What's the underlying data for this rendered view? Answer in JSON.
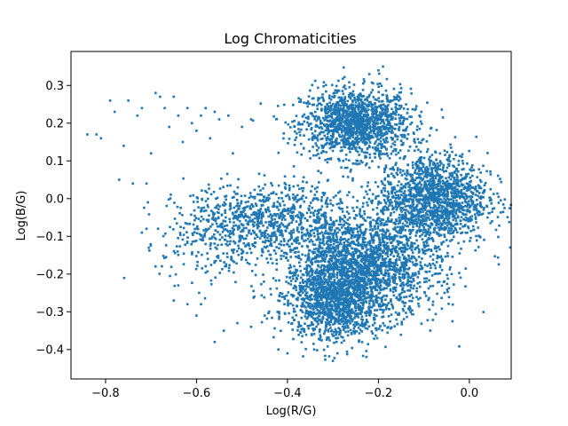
{
  "chart_data": {
    "type": "scatter",
    "title": "Log Chromaticities",
    "xlabel": "Log(R/G)",
    "ylabel": "Log(B/G)",
    "xlim": [
      -0.876,
      0.092
    ],
    "ylim": [
      -0.478,
      0.39
    ],
    "xticks": [
      -0.8,
      -0.6,
      -0.4,
      -0.2,
      0.0
    ],
    "xtick_labels": [
      "−0.8",
      "−0.6",
      "−0.4",
      "−0.2",
      "0.0"
    ],
    "yticks": [
      -0.4,
      -0.3,
      -0.2,
      -0.1,
      0.0,
      0.1,
      0.2,
      0.3
    ],
    "ytick_labels": [
      "−0.4",
      "−0.3",
      "−0.2",
      "−0.1",
      "0.0",
      "0.1",
      "0.2",
      "0.3"
    ],
    "grid": false,
    "marker_color": "#1f77b4",
    "clusters": [
      {
        "cx": -0.25,
        "cy": 0.2,
        "sx": 0.06,
        "sy": 0.045,
        "n": 1400
      },
      {
        "cx": -0.08,
        "cy": 0.0,
        "sx": 0.06,
        "sy": 0.06,
        "n": 1500
      },
      {
        "cx": -0.24,
        "cy": -0.18,
        "sx": 0.085,
        "sy": 0.07,
        "n": 2200
      },
      {
        "cx": -0.3,
        "cy": -0.28,
        "sx": 0.05,
        "sy": 0.05,
        "n": 900
      },
      {
        "cx": -0.44,
        "cy": -0.05,
        "sx": 0.09,
        "sy": 0.045,
        "n": 700
      },
      {
        "cx": -0.56,
        "cy": -0.12,
        "sx": 0.06,
        "sy": 0.06,
        "n": 220
      }
    ],
    "outliers": [
      [
        -0.84,
        0.17
      ],
      [
        -0.82,
        0.17
      ],
      [
        -0.81,
        0.16
      ],
      [
        -0.79,
        0.26
      ],
      [
        -0.78,
        0.23
      ],
      [
        -0.77,
        0.05
      ],
      [
        -0.76,
        0.14
      ],
      [
        -0.75,
        0.26
      ],
      [
        -0.74,
        0.04
      ],
      [
        -0.73,
        0.22
      ],
      [
        -0.72,
        0.24
      ],
      [
        -0.71,
        0.04
      ],
      [
        -0.7,
        0.12
      ],
      [
        -0.69,
        0.28
      ],
      [
        -0.68,
        0.27
      ],
      [
        -0.67,
        0.24
      ],
      [
        -0.66,
        0.19
      ],
      [
        -0.65,
        0.27
      ],
      [
        -0.64,
        0.22
      ],
      [
        -0.63,
        0.15
      ],
      [
        -0.62,
        0.24
      ],
      [
        -0.61,
        0.2
      ],
      [
        -0.6,
        0.18
      ],
      [
        -0.59,
        0.22
      ],
      [
        -0.58,
        0.24
      ],
      [
        -0.57,
        0.16
      ],
      [
        -0.56,
        0.23
      ],
      [
        -0.55,
        0.21
      ],
      [
        -0.53,
        0.22
      ],
      [
        -0.52,
        0.12
      ],
      [
        -0.5,
        0.19
      ],
      [
        -0.48,
        0.21
      ],
      [
        -0.72,
        -0.09
      ],
      [
        -0.71,
        -0.08
      ],
      [
        -0.69,
        -0.18
      ],
      [
        -0.65,
        -0.27
      ],
      [
        -0.64,
        -0.23
      ],
      [
        -0.62,
        -0.28
      ],
      [
        -0.6,
        -0.31
      ],
      [
        -0.59,
        -0.28
      ],
      [
        -0.56,
        -0.38
      ],
      [
        -0.54,
        -0.35
      ],
      [
        -0.51,
        -0.33
      ],
      [
        -0.48,
        -0.34
      ],
      [
        -0.45,
        -0.31
      ],
      [
        -0.42,
        -0.4
      ],
      [
        -0.4,
        -0.41
      ],
      [
        -0.3,
        -0.43
      ],
      [
        -0.29,
        -0.41
      ],
      [
        0.04,
        -0.05
      ],
      [
        0.05,
        -0.06
      ],
      [
        0.03,
        -0.04
      ],
      [
        -0.2,
        0.34
      ],
      [
        -0.22,
        0.33
      ],
      [
        -0.19,
        0.35
      ]
    ]
  }
}
